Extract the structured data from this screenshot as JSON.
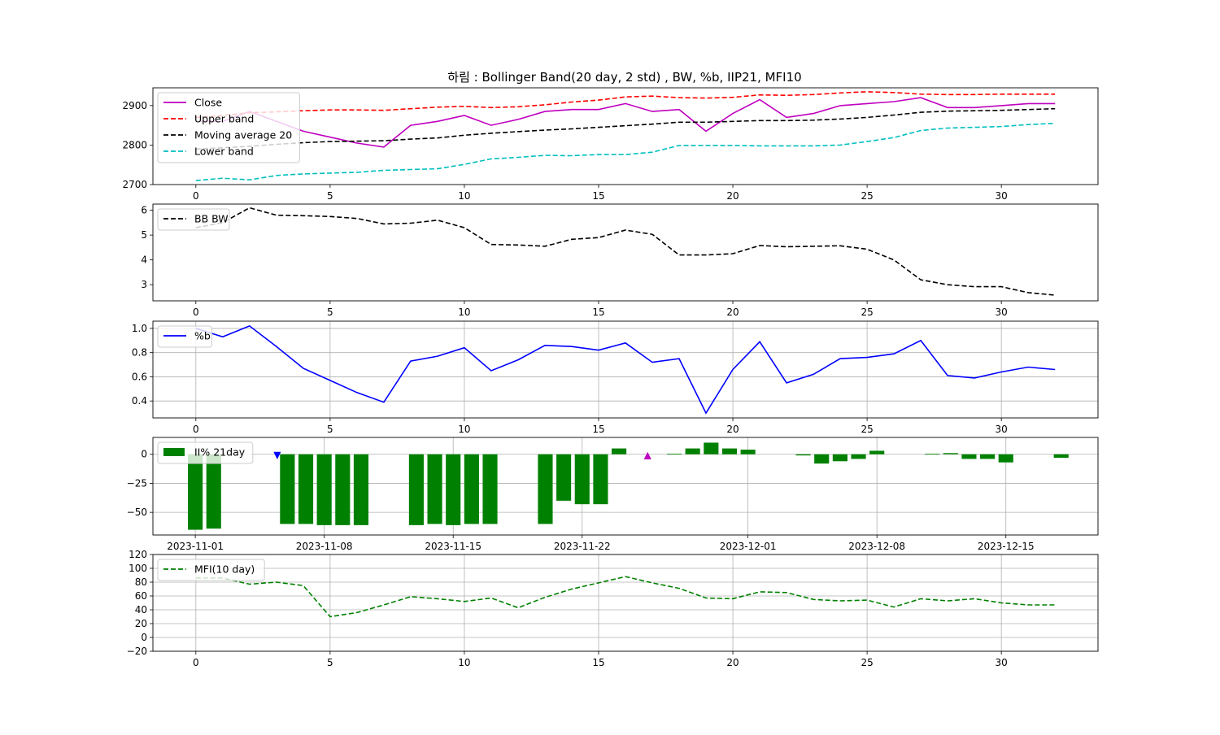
{
  "title": "하림 : Bollinger Band(20 day, 2 std) , BW, %b, IIP21, MFI10",
  "colors": {
    "close": "#bf00bf",
    "upper": "#ff0000",
    "ma": "#000000",
    "lower": "#00bfbf",
    "bw": "#000000",
    "pb": "#0000ff",
    "iip": "#008000",
    "mfi": "#008000",
    "buy_marker": "#0000ff",
    "sell_marker": "#bf00bf",
    "grid": "#b0b0b0"
  },
  "chart_data": [
    {
      "type": "line",
      "name": "price_bands",
      "x": [
        0,
        1,
        2,
        3,
        4,
        5,
        6,
        7,
        8,
        9,
        10,
        11,
        12,
        13,
        14,
        15,
        16,
        17,
        18,
        19,
        20,
        21,
        22,
        23,
        24,
        25,
        26,
        27,
        28,
        29,
        30,
        31,
        32
      ],
      "xticks": [
        0,
        5,
        10,
        15,
        20,
        25,
        30
      ],
      "yticks": [
        2700,
        2800,
        2900
      ],
      "xlim": [
        -1.6,
        33.6
      ],
      "ylim": [
        2700,
        2945
      ],
      "grid": false,
      "legend": "upper-left",
      "series": [
        {
          "name": "Close",
          "style": "solid",
          "color_key": "close",
          "values": [
            2860,
            2860,
            2885,
            2860,
            2835,
            2820,
            2805,
            2795,
            2850,
            2860,
            2875,
            2850,
            2865,
            2885,
            2890,
            2890,
            2905,
            2885,
            2890,
            2835,
            2880,
            2915,
            2870,
            2880,
            2900,
            2905,
            2910,
            2920,
            2895,
            2895,
            2900,
            2905,
            2905
          ]
        },
        {
          "name": "Upper band",
          "style": "dashed",
          "color_key": "upper",
          "values": [
            2870,
            2875,
            2882,
            2884,
            2887,
            2889,
            2889,
            2888,
            2892,
            2896,
            2898,
            2895,
            2897,
            2902,
            2909,
            2914,
            2922,
            2924,
            2920,
            2919,
            2921,
            2927,
            2926,
            2928,
            2932,
            2935,
            2933,
            2929,
            2928,
            2928,
            2929,
            2929,
            2929
          ]
        },
        {
          "name": "Moving average 20",
          "style": "dashed",
          "color_key": "ma",
          "values": [
            2790,
            2793,
            2797,
            2802,
            2806,
            2809,
            2810,
            2811,
            2815,
            2818,
            2825,
            2830,
            2834,
            2838,
            2841,
            2845,
            2849,
            2853,
            2858,
            2858,
            2860,
            2862,
            2862,
            2863,
            2866,
            2870,
            2876,
            2883,
            2886,
            2887,
            2888,
            2890,
            2892
          ]
        },
        {
          "name": "Lower band",
          "style": "dashed",
          "color_key": "lower",
          "values": [
            2710,
            2716,
            2712,
            2723,
            2727,
            2729,
            2731,
            2736,
            2738,
            2740,
            2751,
            2765,
            2769,
            2774,
            2773,
            2776,
            2776,
            2782,
            2799,
            2799,
            2799,
            2798,
            2798,
            2798,
            2800,
            2809,
            2819,
            2837,
            2843,
            2845,
            2847,
            2852,
            2855
          ]
        }
      ]
    },
    {
      "type": "line",
      "name": "bandwidth",
      "x": [
        0,
        1,
        2,
        3,
        4,
        5,
        6,
        7,
        8,
        9,
        10,
        11,
        12,
        13,
        14,
        15,
        16,
        17,
        18,
        19,
        20,
        21,
        22,
        23,
        24,
        25,
        26,
        27,
        28,
        29,
        30,
        31,
        32
      ],
      "xticks": [
        0,
        5,
        10,
        15,
        20,
        25,
        30
      ],
      "yticks": [
        3,
        4,
        5,
        6
      ],
      "xlim": [
        -1.6,
        33.6
      ],
      "ylim": [
        2.35,
        6.25
      ],
      "grid": false,
      "legend": "upper-left",
      "series": [
        {
          "name": "BB BW",
          "style": "dashed",
          "color_key": "bw",
          "values": [
            5.3,
            5.5,
            6.1,
            5.8,
            5.78,
            5.75,
            5.67,
            5.45,
            5.48,
            5.6,
            5.3,
            4.62,
            4.6,
            4.55,
            4.83,
            4.9,
            5.2,
            5.03,
            4.2,
            4.2,
            4.25,
            4.58,
            4.53,
            4.55,
            4.57,
            4.43,
            4.0,
            3.2,
            3.0,
            2.92,
            2.92,
            2.68,
            2.58
          ]
        }
      ]
    },
    {
      "type": "line",
      "name": "percent_b",
      "x": [
        0,
        1,
        2,
        3,
        4,
        5,
        6,
        7,
        8,
        9,
        10,
        11,
        12,
        13,
        14,
        15,
        16,
        17,
        18,
        19,
        20,
        21,
        22,
        23,
        24,
        25,
        26,
        27,
        28,
        29,
        30,
        31,
        32
      ],
      "xticks": [
        0,
        5,
        10,
        15,
        20,
        25,
        30
      ],
      "yticks": [
        0.4,
        0.6,
        0.8,
        1.0
      ],
      "ytick_labels": [
        "0.4",
        "0.6",
        "0.8",
        "1.0"
      ],
      "xlim": [
        -1.6,
        33.6
      ],
      "ylim": [
        0.26,
        1.06
      ],
      "grid": true,
      "legend": "upper-left",
      "series": [
        {
          "name": "%b",
          "style": "solid",
          "color_key": "pb",
          "values": [
            1.0,
            0.93,
            1.02,
            0.85,
            0.67,
            0.57,
            0.47,
            0.39,
            0.73,
            0.77,
            0.84,
            0.65,
            0.74,
            0.86,
            0.85,
            0.82,
            0.88,
            0.72,
            0.75,
            0.3,
            0.66,
            0.89,
            0.55,
            0.62,
            0.75,
            0.76,
            0.79,
            0.9,
            0.61,
            0.59,
            0.64,
            0.68,
            0.66
          ]
        }
      ]
    },
    {
      "type": "bar",
      "name": "iip21",
      "categories": [
        "2023-11-01",
        "2023-11-02",
        "2023-11-06",
        "2023-11-07",
        "2023-11-08",
        "2023-11-09",
        "2023-11-10",
        "2023-11-13",
        "2023-11-14",
        "2023-11-15",
        "2023-11-16",
        "2023-11-17",
        "2023-11-20",
        "2023-11-21",
        "2023-11-22",
        "2023-11-23",
        "2023-11-24",
        "2023-11-27",
        "2023-11-28",
        "2023-11-29",
        "2023-11-30",
        "2023-12-01",
        "2023-12-04",
        "2023-12-05",
        "2023-12-06",
        "2023-12-07",
        "2023-12-08",
        "2023-12-11",
        "2023-12-12",
        "2023-12-13",
        "2023-12-14",
        "2023-12-15",
        "2023-12-18"
      ],
      "day_offsets": [
        0,
        1,
        5,
        6,
        7,
        8,
        9,
        12,
        13,
        14,
        15,
        16,
        19,
        20,
        21,
        22,
        23,
        26,
        27,
        28,
        29,
        30,
        33,
        34,
        35,
        36,
        37,
        40,
        41,
        42,
        43,
        44,
        47
      ],
      "values": [
        -65,
        -64,
        -60,
        -60,
        -61,
        -61,
        -61,
        -61,
        -60,
        -61,
        -60,
        -60,
        -60,
        -40,
        -43,
        -43,
        5,
        0.5,
        5,
        10,
        5,
        4,
        -1,
        -8,
        -6,
        -4,
        3,
        0.5,
        1,
        -4,
        -4,
        -7,
        -3
      ],
      "xticks": [
        "2023-11-01",
        "2023-11-08",
        "2023-11-15",
        "2023-11-22",
        "2023-12-01",
        "2023-12-08",
        "2023-12-15"
      ],
      "xtick_offsets": [
        0,
        7,
        14,
        21,
        30,
        37,
        44
      ],
      "yticks": [
        0,
        -25,
        -50
      ],
      "ytick_labels": [
        "0",
        "−25",
        "−50"
      ],
      "xlim": [
        -2.3,
        49.0
      ],
      "ylim": [
        -69.5,
        14.5
      ],
      "grid": true,
      "legend": "upper-left",
      "legend_label": "II% 21day",
      "markers": [
        {
          "type": "buy",
          "symbol": "▼",
          "day_offset": 4.45,
          "value": 0,
          "color_key": "buy_marker"
        },
        {
          "type": "sell",
          "symbol": "▲",
          "day_offset": 24.55,
          "value": 0,
          "color_key": "sell_marker"
        }
      ]
    },
    {
      "type": "line",
      "name": "mfi10",
      "x": [
        0,
        1,
        2,
        3,
        4,
        5,
        6,
        7,
        8,
        9,
        10,
        11,
        12,
        13,
        14,
        15,
        16,
        17,
        18,
        19,
        20,
        21,
        22,
        23,
        24,
        25,
        26,
        27,
        28,
        29,
        30,
        31,
        32
      ],
      "xticks": [
        0,
        5,
        10,
        15,
        20,
        25,
        30
      ],
      "yticks": [
        -20,
        0,
        20,
        40,
        60,
        80,
        100,
        120
      ],
      "ytick_labels": [
        "−20",
        "0",
        "20",
        "40",
        "60",
        "80",
        "100",
        "120"
      ],
      "xlim": [
        -1.6,
        33.6
      ],
      "ylim": [
        -20,
        120
      ],
      "grid": true,
      "legend": "upper-left",
      "series": [
        {
          "name": "MFI(10 day)",
          "style": "dashed",
          "color_key": "mfi",
          "values": [
            86,
            86,
            77,
            80,
            75,
            30,
            36,
            47,
            59,
            56,
            52,
            57,
            43,
            58,
            70,
            79,
            88,
            79,
            71,
            57,
            56,
            66,
            65,
            55,
            53,
            54,
            44,
            56,
            53,
            56,
            50,
            47,
            47
          ]
        }
      ]
    }
  ]
}
